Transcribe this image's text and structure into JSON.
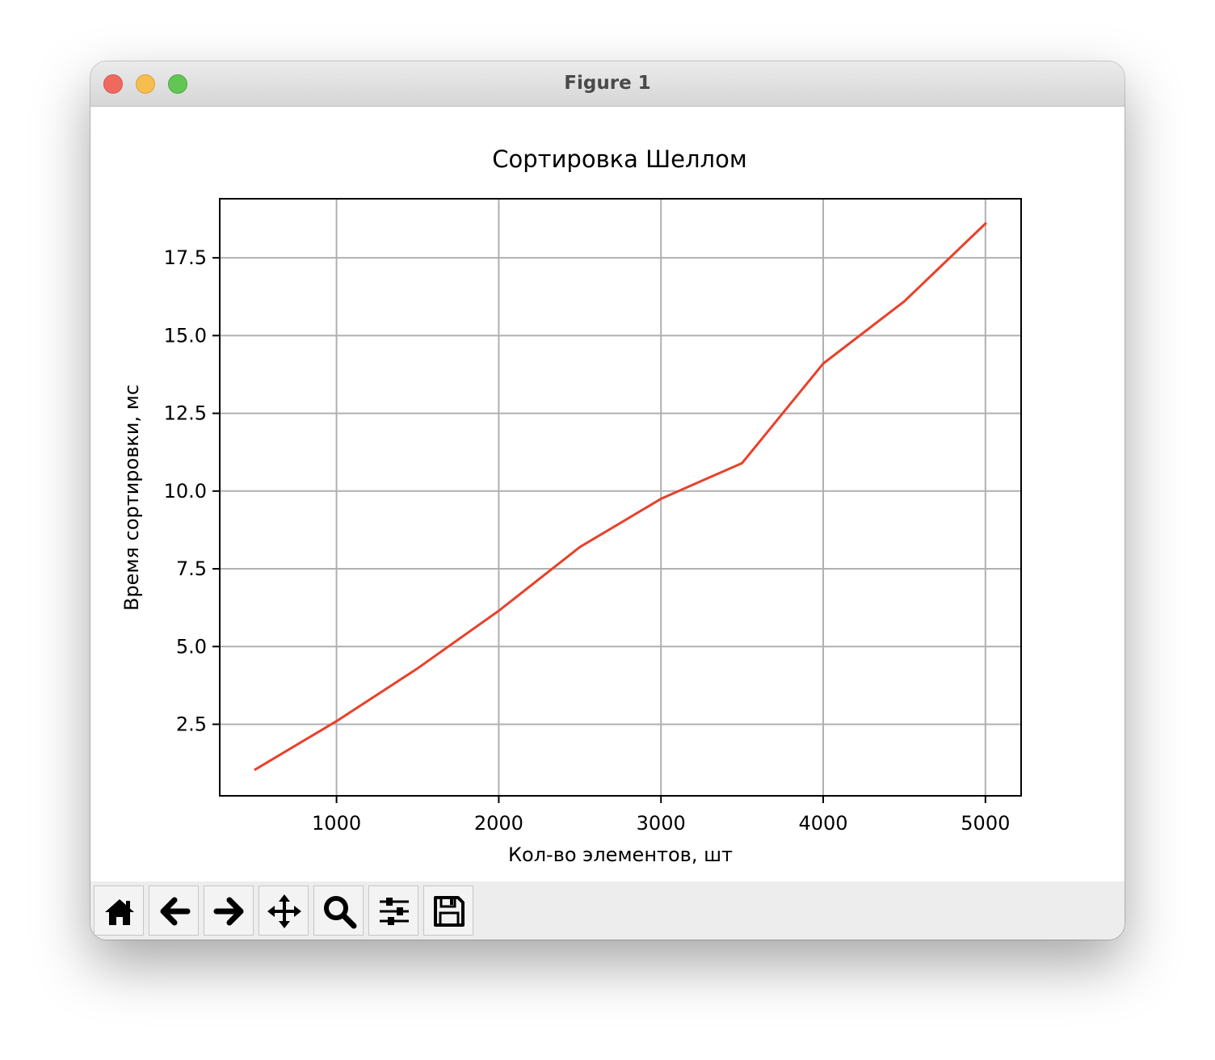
{
  "window": {
    "title": "Figure 1"
  },
  "toolbar": {
    "buttons": [
      {
        "name": "home-button",
        "icon": "home-icon"
      },
      {
        "name": "back-button",
        "icon": "arrow-left-icon"
      },
      {
        "name": "forward-button",
        "icon": "arrow-right-icon"
      },
      {
        "name": "pan-button",
        "icon": "move-icon"
      },
      {
        "name": "zoom-button",
        "icon": "magnifier-icon"
      },
      {
        "name": "configure-subplots-button",
        "icon": "sliders-icon"
      },
      {
        "name": "save-button",
        "icon": "floppy-disk-icon"
      }
    ]
  },
  "chart_data": {
    "type": "line",
    "title": "Сортировка Шеллом",
    "xlabel": "Кол-во элементов, шт",
    "ylabel": "Время сортировки, мс",
    "x": [
      500,
      1000,
      1500,
      2000,
      2500,
      3000,
      3500,
      4000,
      4500,
      5000
    ],
    "series": [
      {
        "color": "#e8412b",
        "values": [
          1.05,
          2.6,
          4.3,
          6.15,
          8.2,
          9.75,
          10.9,
          14.1,
          16.1,
          18.6
        ]
      }
    ],
    "xlim": [
      280,
      5220
    ],
    "ylim": [
      0.2,
      19.4
    ],
    "xticks": [
      1000,
      2000,
      3000,
      4000,
      5000
    ],
    "xtick_labels": [
      "1000",
      "2000",
      "3000",
      "4000",
      "5000"
    ],
    "yticks": [
      2.5,
      5.0,
      7.5,
      10.0,
      12.5,
      15.0,
      17.5
    ],
    "ytick_labels": [
      "2.5",
      "5.0",
      "7.5",
      "10.0",
      "12.5",
      "15.0",
      "17.5"
    ],
    "grid": true
  }
}
